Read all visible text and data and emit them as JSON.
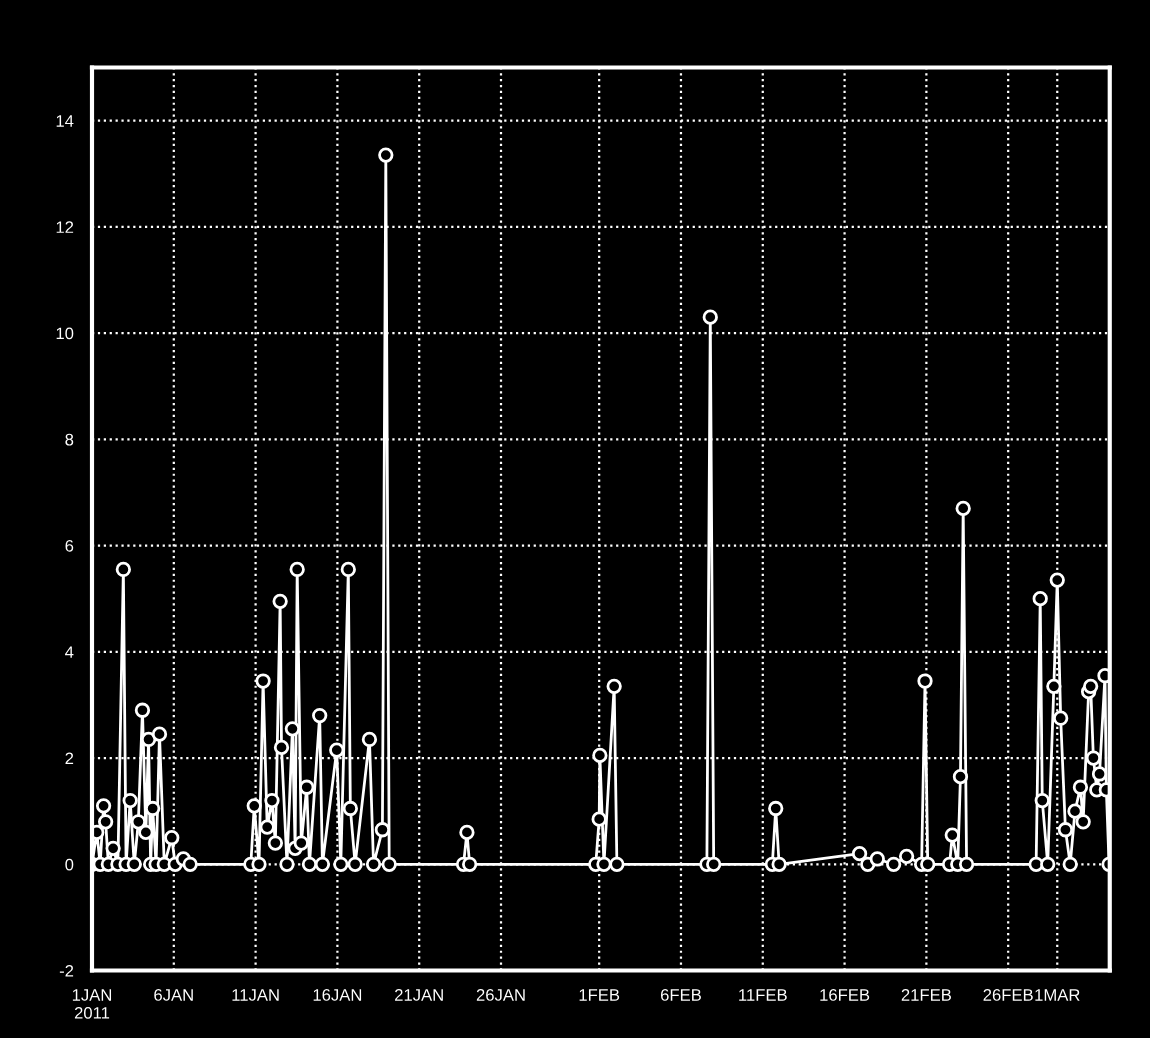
{
  "chart_data": {
    "type": "line",
    "marker": "circle",
    "line_style": "solid",
    "grid": true,
    "legend": false,
    "x": [
      "2011-01-01T00:00",
      "2011-01-01T07:00",
      "2011-01-01T12:00",
      "2011-01-01T17:00",
      "2011-01-01T20:00",
      "2011-01-02T00:00",
      "2011-01-02T07:00",
      "2011-01-02T14:00",
      "2011-01-02T22:00",
      "2011-01-03T02:00",
      "2011-01-03T08:00",
      "2011-01-03T14:00",
      "2011-01-03T20:00",
      "2011-01-04T02:00",
      "2011-01-04T07:00",
      "2011-01-04T11:00",
      "2011-01-04T14:00",
      "2011-01-04T17:00",
      "2011-01-04T22:00",
      "2011-01-05T03:00",
      "2011-01-05T10:00",
      "2011-01-05T21:00",
      "2011-01-06T02:00",
      "2011-01-06T14:00",
      "2011-01-07T00:00",
      "2011-01-10T17:00",
      "2011-01-10T22:00",
      "2011-01-11T05:00",
      "2011-01-11T11:00",
      "2011-01-11T17:00",
      "2011-01-12T00:00",
      "2011-01-12T05:00",
      "2011-01-12T12:00",
      "2011-01-12T14:00",
      "2011-01-12T22:00",
      "2011-01-13T06:00",
      "2011-01-13T10:00",
      "2011-01-13T13:00",
      "2011-01-13T19:00",
      "2011-01-14T03:00",
      "2011-01-14T07:00",
      "2011-01-14T22:00",
      "2011-01-15T02:00",
      "2011-01-15T23:00",
      "2011-01-16T05:00",
      "2011-01-16T16:00",
      "2011-01-16T19:00",
      "2011-01-17T02:00",
      "2011-01-17T23:00",
      "2011-01-18T05:00",
      "2011-01-18T18:00",
      "2011-01-18T23:00",
      "2011-01-19T04:00",
      "2011-01-23T17:00",
      "2011-01-23T22:00",
      "2011-01-24T02:00",
      "2011-01-31T19:00",
      "2011-02-01T00:00",
      "2011-02-01T01:00",
      "2011-02-01T07:00",
      "2011-02-01T22:00",
      "2011-02-02T02:00",
      "2011-02-07T14:00",
      "2011-02-07T19:00",
      "2011-02-08T00:00",
      "2011-02-11T14:00",
      "2011-02-11T19:00",
      "2011-02-12T00:00",
      "2011-02-16T22:00",
      "2011-02-17T10:00",
      "2011-02-18T00:00",
      "2011-02-19T00:00",
      "2011-02-19T19:00",
      "2011-02-20T17:00",
      "2011-02-20T22:00",
      "2011-02-21T02:00",
      "2011-02-22T10:00",
      "2011-02-22T14:00",
      "2011-02-22T22:00",
      "2011-02-23T02:00",
      "2011-02-23T06:00",
      "2011-02-23T11:00",
      "2011-02-27T17:00",
      "2011-02-27T23:00",
      "2011-02-28T02:00",
      "2011-02-28T10:00",
      "2011-02-28T19:00",
      "2011-03-01T00:00",
      "2011-03-01T05:00",
      "2011-03-01T12:00",
      "2011-03-01T19:00",
      "2011-03-02T02:00",
      "2011-03-02T10:00",
      "2011-03-02T14:00",
      "2011-03-02T22:00",
      "2011-03-03T01:00",
      "2011-03-03T05:00",
      "2011-03-03T10:00",
      "2011-03-03T14:00",
      "2011-03-03T22:00",
      "2011-03-04T00:00",
      "2011-03-04T04:00"
    ],
    "series": [
      {
        "color": "#ffffff",
        "values": [
          0,
          0.6,
          0,
          1.1,
          0.8,
          0,
          0.3,
          0,
          5.55,
          0,
          1.2,
          0,
          0.8,
          2.9,
          0.6,
          2.35,
          0,
          1.05,
          0,
          2.45,
          0,
          0.5,
          0,
          0.1,
          0,
          0,
          1.1,
          0,
          3.45,
          0.7,
          1.2,
          0.4,
          4.95,
          2.2,
          0,
          2.55,
          0.3,
          5.55,
          0.4,
          1.45,
          0,
          2.8,
          0,
          2.15,
          0,
          5.55,
          1.05,
          0,
          2.35,
          0,
          0.65,
          13.35,
          0,
          0,
          0.6,
          0,
          0,
          0.85,
          2.05,
          0,
          3.35,
          0,
          0,
          10.3,
          0,
          0,
          1.05,
          0,
          0.2,
          0,
          0.1,
          0,
          0.15,
          0,
          3.45,
          0,
          0,
          0.55,
          0,
          1.65,
          6.7,
          0,
          0,
          5.0,
          1.2,
          0,
          3.35,
          5.35,
          2.75,
          0.65,
          0,
          1.0,
          1.45,
          0.8,
          3.25,
          3.35,
          2.0,
          1.4,
          1.7,
          3.55,
          1.4,
          0
        ]
      }
    ],
    "xlim": [
      "2011-01-01T00:00",
      "2011-03-04T05:00"
    ],
    "xticks": [
      {
        "value": "2011-01-01",
        "label": "1JAN\n2011"
      },
      {
        "value": "2011-01-06",
        "label": "6JAN"
      },
      {
        "value": "2011-01-11",
        "label": "11JAN"
      },
      {
        "value": "2011-01-16",
        "label": "16JAN"
      },
      {
        "value": "2011-01-21",
        "label": "21JAN"
      },
      {
        "value": "2011-01-26",
        "label": "26JAN"
      },
      {
        "value": "2011-02-01",
        "label": "1FEB"
      },
      {
        "value": "2011-02-06",
        "label": "6FEB"
      },
      {
        "value": "2011-02-11",
        "label": "11FEB"
      },
      {
        "value": "2011-02-16",
        "label": "16FEB"
      },
      {
        "value": "2011-02-21",
        "label": "21FEB"
      },
      {
        "value": "2011-02-26",
        "label": "26FEB"
      },
      {
        "value": "2011-03-01",
        "label": "1MAR"
      }
    ],
    "ylim": [
      -2,
      15
    ],
    "yticks": [
      -2,
      0,
      2,
      4,
      6,
      8,
      10,
      12,
      14
    ]
  }
}
